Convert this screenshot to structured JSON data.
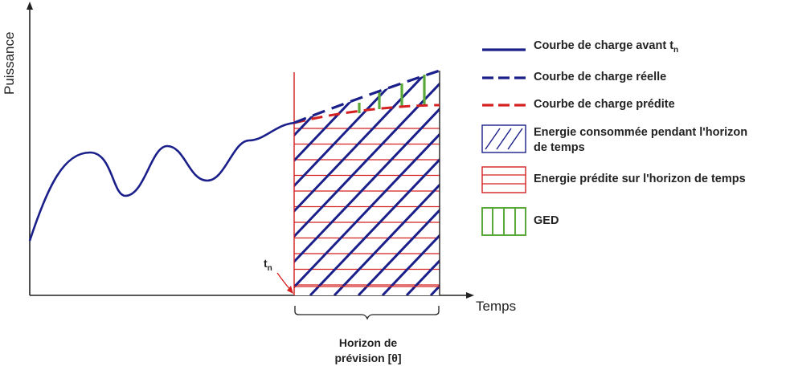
{
  "axes": {
    "y_label": "Puissance",
    "x_label": "Temps"
  },
  "marker": {
    "t_base": "t",
    "t_sub": "n"
  },
  "horizon": {
    "line1": "Horizon de",
    "line2": "prévision [θ]"
  },
  "legend": {
    "before_base": "Courbe de charge avant t",
    "before_sub": "n",
    "real": "Courbe de charge réelle",
    "predicted": "Courbe de charge prédite",
    "consumed_1": "Energie consommée pendant l'horizon",
    "consumed_2": "de temps",
    "predicted_energy": "Energie prédite sur l'horizon de temps",
    "ged": "GED"
  },
  "colors": {
    "before_curve": "#1a1f8a",
    "real_curve": "#1a1f8a",
    "predicted_curve": "#d42020",
    "consumed_hatch": "#1a1f8a",
    "predicted_hatch": "#d42020",
    "ged": "#5aa83a",
    "axis": "#222222"
  }
}
